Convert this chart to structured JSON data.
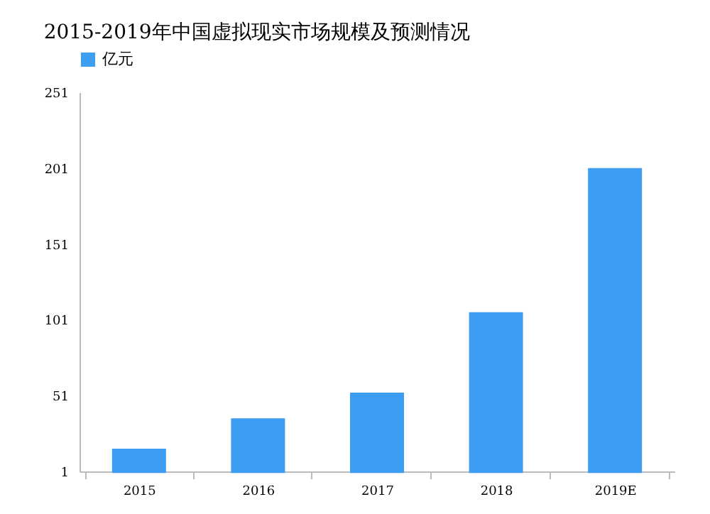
{
  "chart_data": {
    "type": "bar",
    "title": "2015-2019年中国虚拟现实市场规模及预测情况",
    "categories": [
      "2015",
      "2016",
      "2017",
      "2018",
      "2019E"
    ],
    "series": [
      {
        "name": "亿元",
        "color": "#3d9df2",
        "values": [
          16,
          36,
          53,
          106,
          201
        ]
      }
    ],
    "ylim": [
      1,
      251
    ],
    "yticks": [
      1,
      51,
      101,
      151,
      201,
      251
    ],
    "grid": false,
    "legend": "top"
  }
}
